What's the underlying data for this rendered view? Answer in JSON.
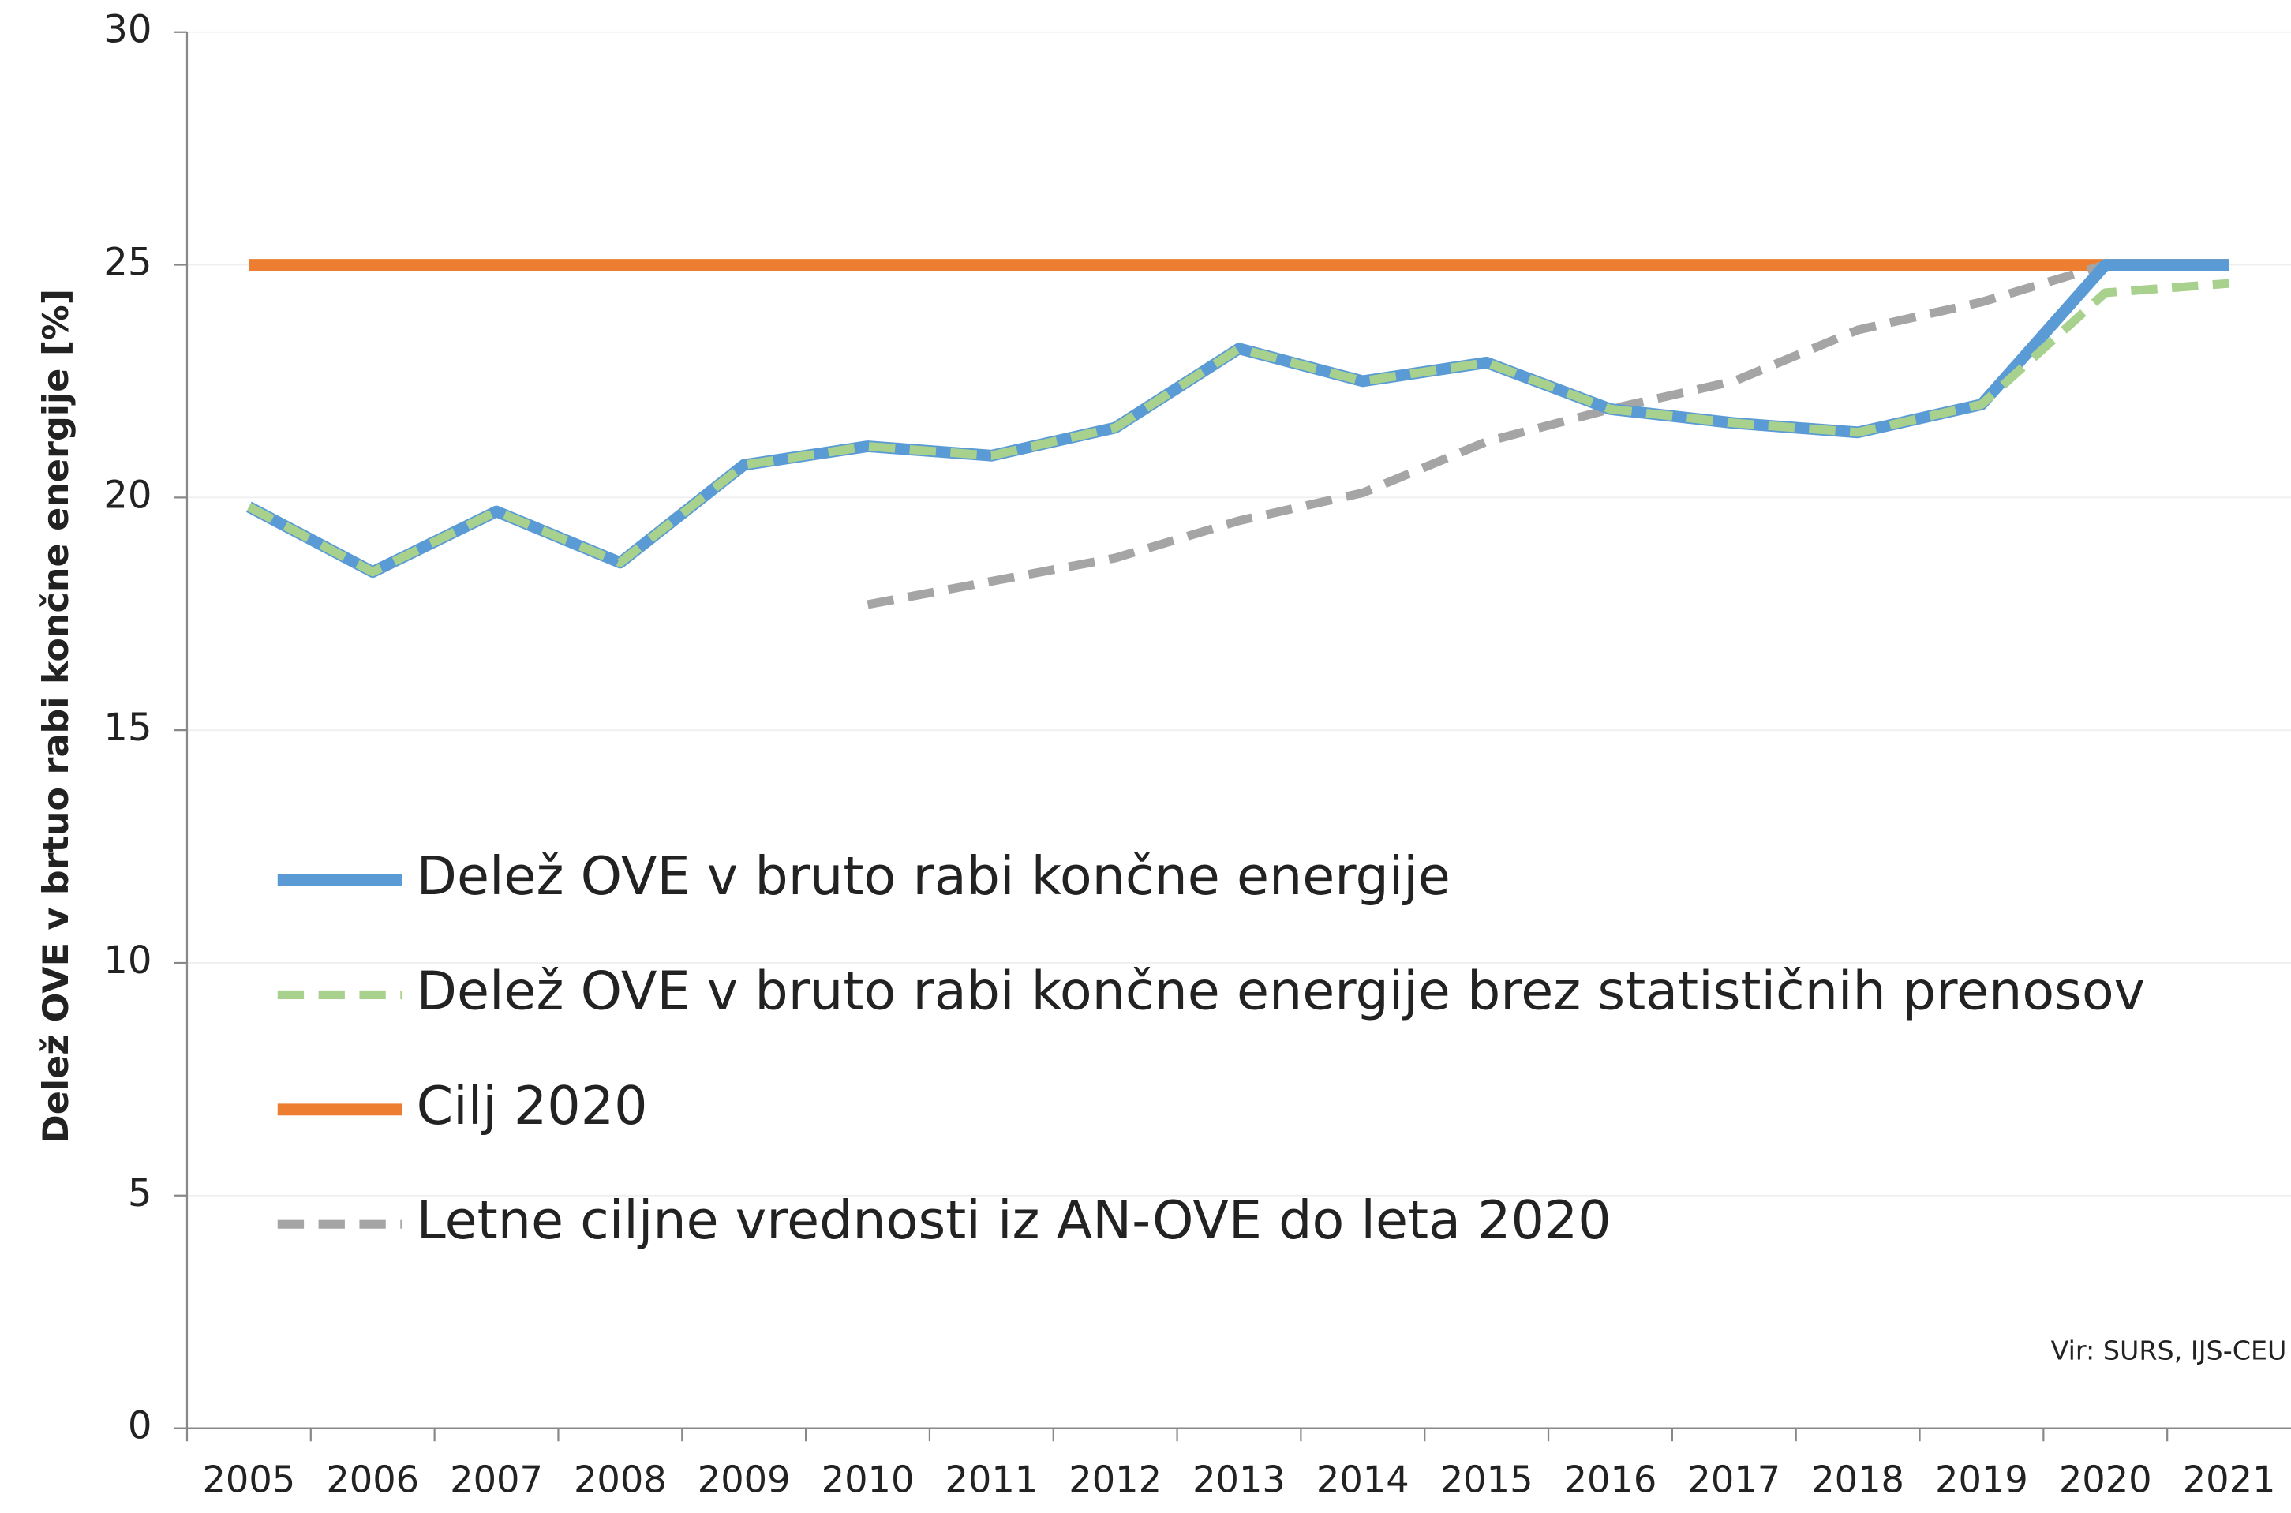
{
  "chart_data": {
    "type": "line",
    "y_axis_label": "Delež OVE v brtuo rabi končne energije [%]",
    "annotation": "Vir: SURS, IJS-CEU",
    "categories": [
      "2005",
      "2006",
      "2007",
      "2008",
      "2009",
      "2010",
      "2011",
      "2012",
      "2013",
      "2014",
      "2015",
      "2016",
      "2017",
      "2018",
      "2019",
      "2020",
      "2021"
    ],
    "series": [
      {
        "name": "Delež OVE v bruto rabi končne energije",
        "color": "#5b9bd5",
        "dashed": false,
        "values": [
          19.8,
          18.4,
          19.7,
          18.6,
          20.7,
          21.1,
          20.9,
          21.5,
          23.2,
          22.5,
          22.9,
          21.9,
          21.6,
          21.4,
          22.0,
          25.0,
          25.0
        ]
      },
      {
        "name": "Delež OVE v bruto rabi končne energije brez statističnih prenosov",
        "color": "#a9d18e",
        "dashed": true,
        "values": [
          19.8,
          18.4,
          19.7,
          18.6,
          20.7,
          21.1,
          20.9,
          21.5,
          23.2,
          22.5,
          22.9,
          21.9,
          21.6,
          21.4,
          22.0,
          24.4,
          24.6
        ]
      },
      {
        "name": "Cilj 2020",
        "color": "#ed7d31",
        "dashed": false,
        "values": [
          25,
          25,
          25,
          25,
          25,
          25,
          25,
          25,
          25,
          25,
          25,
          25,
          25,
          25,
          25,
          25,
          25
        ]
      },
      {
        "name": "Letne ciljne vrednosti iz AN-OVE do leta 2020",
        "color": "#a5a5a5",
        "dashed": true,
        "values": [
          null,
          null,
          null,
          null,
          null,
          17.7,
          18.2,
          18.7,
          19.5,
          20.1,
          21.2,
          21.9,
          22.5,
          23.6,
          24.2,
          25.0,
          null
        ]
      }
    ],
    "ylim": [
      0,
      30
    ],
    "yticks": [
      0,
      5,
      10,
      15,
      20,
      25,
      30
    ],
    "grid": true,
    "legend": "left"
  }
}
